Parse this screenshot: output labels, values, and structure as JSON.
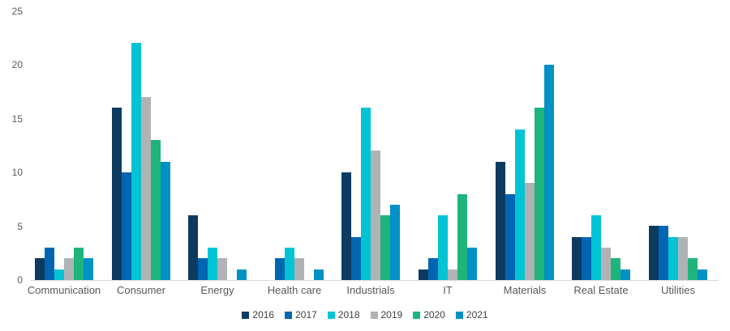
{
  "chart_data": {
    "type": "bar",
    "title": "",
    "xlabel": "",
    "ylabel": "",
    "categories": [
      "Communication",
      "Consumer",
      "Energy",
      "Health care",
      "Industrials",
      "IT",
      "Materials",
      "Real Estate",
      "Utilities"
    ],
    "series": [
      {
        "name": "2016",
        "color": "#0d3a5f",
        "values": [
          2,
          16,
          6,
          0,
          10,
          1,
          11,
          4,
          5
        ]
      },
      {
        "name": "2017",
        "color": "#0066b1",
        "values": [
          3,
          10,
          2,
          2,
          4,
          2,
          8,
          4,
          5
        ]
      },
      {
        "name": "2018",
        "color": "#00c4d4",
        "values": [
          1,
          22,
          3,
          3,
          16,
          6,
          14,
          6,
          4
        ]
      },
      {
        "name": "2019",
        "color": "#b0b3b4",
        "values": [
          2,
          17,
          2,
          2,
          12,
          1,
          9,
          3,
          4
        ]
      },
      {
        "name": "2020",
        "color": "#1eb47c",
        "values": [
          3,
          13,
          0,
          0,
          6,
          8,
          16,
          2,
          2
        ]
      },
      {
        "name": "2021",
        "color": "#0091c5",
        "values": [
          2,
          11,
          1,
          1,
          7,
          3,
          20,
          1,
          1
        ]
      }
    ],
    "ylim": [
      0,
      25
    ],
    "yticks": [
      0,
      5,
      10,
      15,
      20,
      25
    ],
    "grid": false,
    "legend_position": "bottom"
  },
  "style": {
    "axis_text_color": "#595959",
    "legend_text_color": "#404040",
    "baseline_color": "#d9d9d9",
    "background": "#ffffff"
  }
}
